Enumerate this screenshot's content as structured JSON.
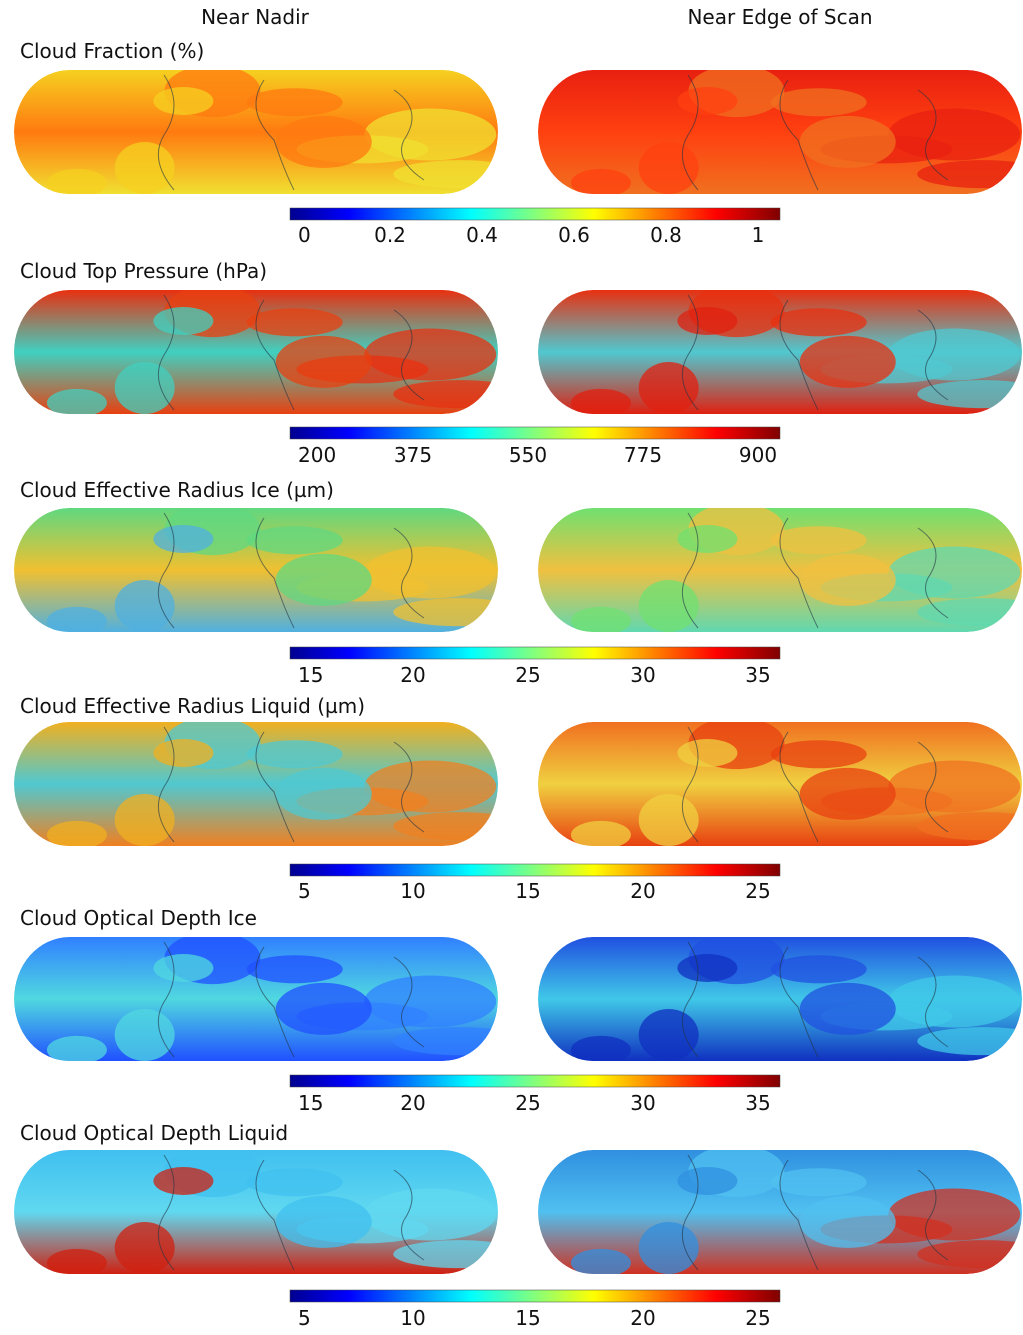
{
  "columns": [
    "Near Nadir",
    "Near Edge of Scan"
  ],
  "panels": [
    {
      "title": "Cloud Fraction (%)",
      "colorbar_ticks": [
        0,
        0.2,
        0.4,
        0.6,
        0.8,
        1
      ]
    },
    {
      "title": "Cloud Top Pressure (hPa)",
      "colorbar_ticks": [
        200,
        375,
        550,
        775,
        900
      ]
    },
    {
      "title": "Cloud Effective Radius Ice (µm)",
      "colorbar_ticks": [
        15,
        20,
        25,
        30,
        35
      ]
    },
    {
      "title": "Cloud Effective Radius Liquid (µm)",
      "colorbar_ticks": [
        5,
        10,
        15,
        20,
        25
      ]
    },
    {
      "title": "Cloud Optical Depth Ice",
      "colorbar_ticks": [
        15,
        20,
        25,
        30,
        35
      ]
    },
    {
      "title": "Cloud Optical Depth Liquid",
      "colorbar_ticks": [
        5,
        10,
        15,
        20,
        25
      ]
    }
  ]
}
